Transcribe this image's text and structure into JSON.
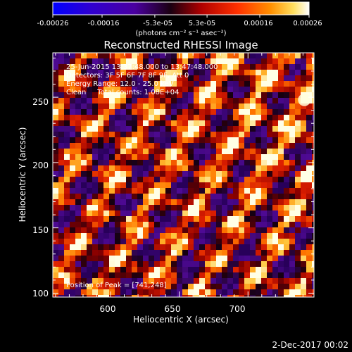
{
  "colorbar": {
    "ticks": [
      "-0.00026",
      "-0.00016",
      "-5.3e-05",
      "5.3e-05",
      "0.00016",
      "0.00026"
    ],
    "tick_values": [
      -0.00026,
      -0.00016,
      -5.3e-05,
      5.3e-05,
      0.00016,
      0.00026
    ],
    "units": "(photons cm⁻² s⁻¹ asec⁻²)",
    "range": [
      -0.00026,
      0.00026
    ]
  },
  "footer_date": "2-Dec-2017 00:02",
  "chart_data": {
    "type": "heatmap",
    "title": "Reconstructed RHESSI Image",
    "xlabel": "Heliocentric X (arcsec)",
    "ylabel": "Heliocentric Y (arcsec)",
    "xlim": [
      558,
      748
    ],
    "ylim": [
      97,
      284
    ],
    "xticks": [
      600,
      650,
      700
    ],
    "yticks": [
      100,
      150,
      200,
      250
    ],
    "annotations": [
      "25-Jun-2015 13:37:48.000 to 13:47:48.000",
      "Detectors: 3F 5F 6F 7F 8F 9F, Att 0",
      "Energy Range: 12.0 - 25.0 keV",
      "Clean     Total counts: 1.08E+04"
    ],
    "peak_label": "Position of Peak = [741,248]",
    "peak": [
      741,
      248
    ],
    "colormap": [
      "#0000ff",
      "#4a00b0",
      "#200018",
      "#8a0000",
      "#e02000",
      "#ff8000",
      "#ffd040",
      "#ffffff"
    ]
  }
}
